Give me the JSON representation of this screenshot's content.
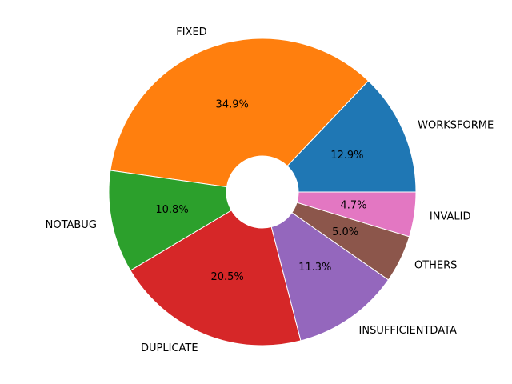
{
  "chart_data": {
    "type": "pie",
    "style": "donut",
    "start_angle_deg": 0,
    "direction": "counterclockwise",
    "slices": [
      {
        "label": "WORKSFORME",
        "pct": 12.9,
        "pct_label": "12.9%",
        "color": "#1f77b4"
      },
      {
        "label": "FIXED",
        "pct": 34.9,
        "pct_label": "34.9%",
        "color": "#ff7f0e"
      },
      {
        "label": "NOTABUG",
        "pct": 10.8,
        "pct_label": "10.8%",
        "color": "#2ca02c"
      },
      {
        "label": "DUPLICATE",
        "pct": 20.5,
        "pct_label": "20.5%",
        "color": "#d62728"
      },
      {
        "label": "INSUFFICIENTDATA",
        "pct": 11.3,
        "pct_label": "11.3%",
        "color": "#9467bd"
      },
      {
        "label": "OTHERS",
        "pct": 5.0,
        "pct_label": "5.0%",
        "color": "#8c564b"
      },
      {
        "label": "INVALID",
        "pct": 4.7,
        "pct_label": "4.7%",
        "color": "#e377c2"
      }
    ]
  }
}
